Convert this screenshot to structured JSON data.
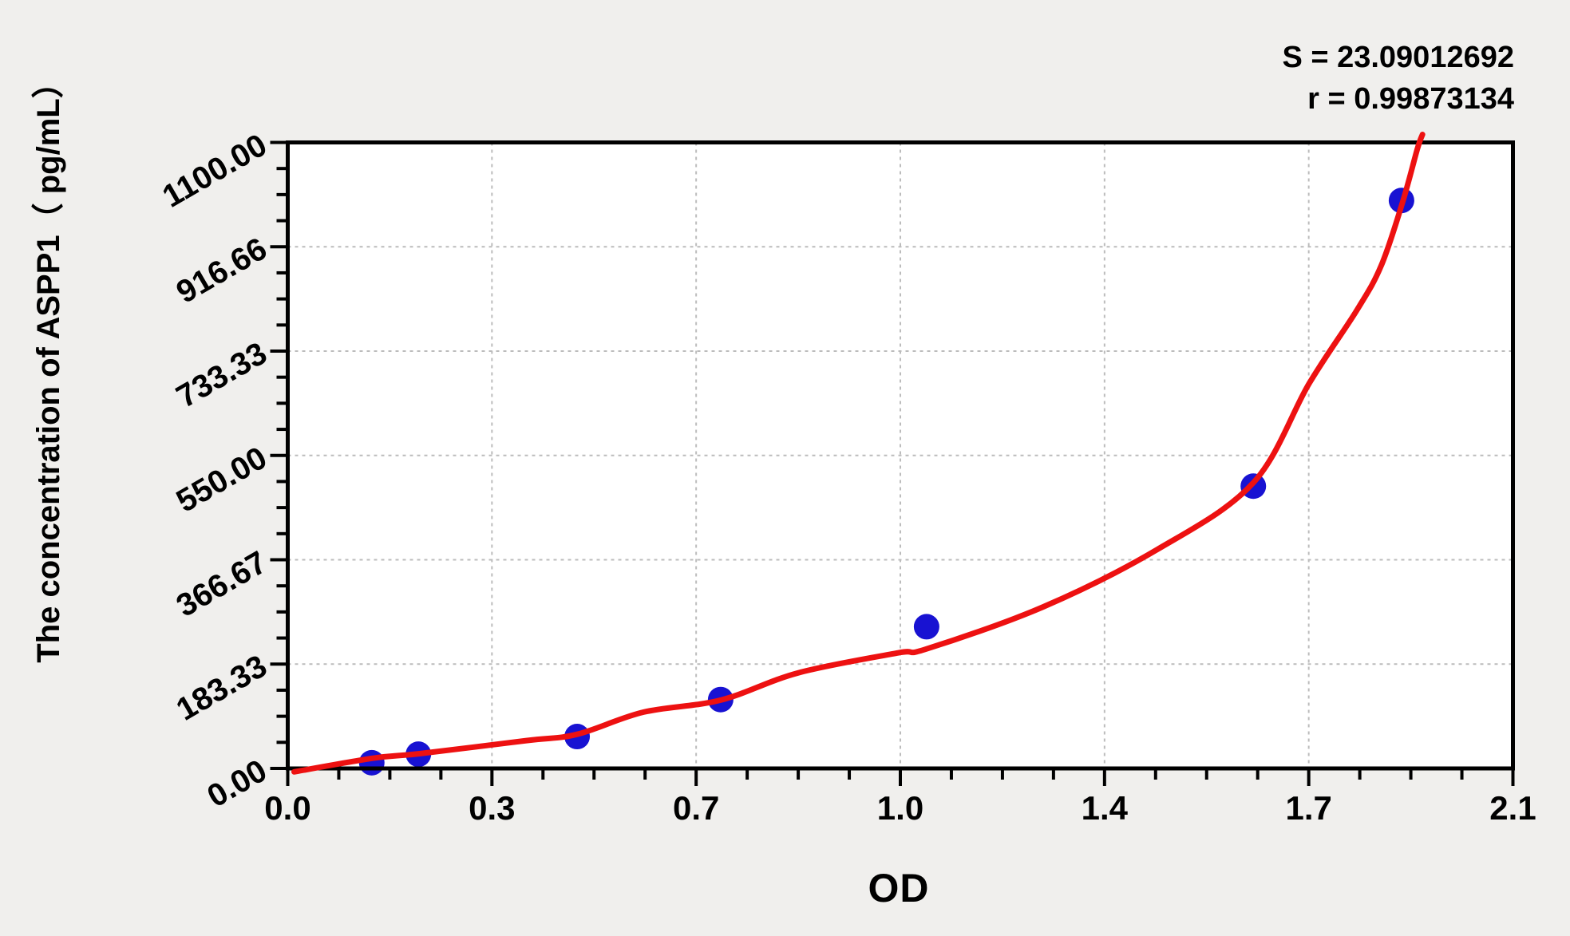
{
  "figure": {
    "background": "#f0efed",
    "plot_background": "#ffffff",
    "frame_color": "#000000"
  },
  "stats": {
    "s": "S = 23.09012692",
    "r": "r = 0.99873134"
  },
  "chart_data": {
    "type": "scatter",
    "title": "",
    "xlabel": "OD",
    "ylabel": "The concentration of ASPP1（ pg/mL） ",
    "xlim": [
      0,
      2.1
    ],
    "ylim": [
      0,
      1100
    ],
    "x_tick_labels": [
      "0.0",
      "0.3",
      "0.7",
      "1.0",
      "1.4",
      "1.7",
      "2.1"
    ],
    "y_tick_labels": [
      "0.00",
      "183.33",
      "366.67",
      "550.00",
      "733.33",
      "916.66",
      "1100.00"
    ],
    "minor_ticks_between_major": 3,
    "grid": {
      "style": "dashed",
      "on_major_ticks": true,
      "color": "#bcbcbc"
    },
    "legend": null,
    "series": [
      {
        "name": "standard-points",
        "type": "scatter",
        "color": "#1812d2",
        "points": [
          {
            "od": 0.144,
            "conc": 10
          },
          {
            "od": 0.224,
            "conc": 25
          },
          {
            "od": 0.496,
            "conc": 56
          },
          {
            "od": 0.742,
            "conc": 121
          },
          {
            "od": 1.095,
            "conc": 249
          },
          {
            "od": 1.655,
            "conc": 496
          },
          {
            "od": 1.909,
            "conc": 998
          }
        ]
      },
      {
        "name": "fitted-curve",
        "type": "line",
        "color": "#ed1111",
        "points": [
          [
            0.011,
            -6
          ],
          [
            0.146,
            18
          ],
          [
            0.226,
            26
          ],
          [
            0.409,
            49
          ],
          [
            0.496,
            60
          ],
          [
            0.61,
            99
          ],
          [
            0.742,
            120
          ],
          [
            0.875,
            168
          ],
          [
            1.046,
            203
          ],
          [
            1.095,
            210
          ],
          [
            1.295,
            284
          ],
          [
            1.491,
            385
          ],
          [
            1.655,
            502
          ],
          [
            1.751,
            677
          ],
          [
            1.833,
            806
          ],
          [
            1.874,
            883
          ],
          [
            1.91,
            992
          ],
          [
            1.936,
            1088
          ],
          [
            1.945,
            1114
          ]
        ]
      }
    ],
    "fit_stats": {
      "S": 23.09012692,
      "r": 0.99873134
    }
  }
}
